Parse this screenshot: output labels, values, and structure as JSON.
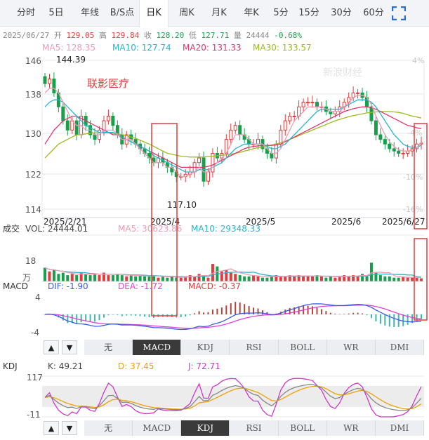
{
  "tabs": [
    {
      "label": "分时",
      "active": false
    },
    {
      "label": "5日",
      "active": false
    },
    {
      "label": "年线",
      "active": false
    },
    {
      "label": "B/S点",
      "active": false
    },
    {
      "label": "日K",
      "active": true
    },
    {
      "label": "周K",
      "active": false
    },
    {
      "label": "月K",
      "active": false
    },
    {
      "label": "年K",
      "active": false
    },
    {
      "label": "5分",
      "active": false
    },
    {
      "label": "15分",
      "active": false
    },
    {
      "label": "30分",
      "active": false
    },
    {
      "label": "60分",
      "active": false
    }
  ],
  "info": {
    "date": "2025/06/27",
    "open_label": "开",
    "open": "129.05",
    "high_label": "高",
    "high": "129.84",
    "close_label": "收",
    "close": "128.20",
    "low_label": "低",
    "low": "127.71",
    "vol_label": "量",
    "vol": "24444",
    "change": "-0.68%"
  },
  "ma": {
    "ma5": "MA5: 128.35",
    "ma10": "MA10: 127.74",
    "ma20": "MA20: 131.33",
    "ma30": "MA30: 133.57"
  },
  "stock_name": "联影医疗",
  "watermark": "新浪财经",
  "price_axis": {
    "labels": [
      "146",
      "138",
      "130",
      "122",
      "114"
    ],
    "right_labels": [
      "4%",
      "-4%",
      "-10%",
      "-16%"
    ],
    "ticks": [
      146,
      138,
      130,
      122,
      114
    ]
  },
  "annotations": {
    "high": "144.39",
    "low": "117.10"
  },
  "date_labels": [
    "2025/2/21",
    "2025/4",
    "2025/5",
    "2025/6",
    "2025/6/27"
  ],
  "volume": {
    "title": "成交",
    "vol": "VOL: 24444.01",
    "ma5": "MA5: 30623.86",
    "ma10": "MA10: 29348.33",
    "axis_top": "18",
    "axis_unit": "万"
  },
  "macd": {
    "title": "MACD",
    "dif": "DIF: -1.90",
    "dea": "DEA: -1.72",
    "macd": "MACD: -0.37",
    "axis_top": "4",
    "axis_bottom": "-4"
  },
  "kdj": {
    "title": "KDJ",
    "k": "K: 49.21",
    "d": "D: 37.45",
    "j": "J: 72.71",
    "axis_top": "117",
    "axis_bottom": "-11"
  },
  "indicator_buttons": [
    "无",
    "MACD",
    "KDJ",
    "RSI",
    "BOLL",
    "WR",
    "DMI"
  ],
  "macd_panel_active": "MACD",
  "kdj_panel_active": "KDJ",
  "arrows": {
    "up": "▲",
    "down": "▼"
  },
  "colors": {
    "up": "#e23b3b",
    "down": "#17a04c",
    "ma5": "#f09ab4",
    "ma10": "#27b4d0",
    "ma20": "#e0356b",
    "ma30": "#9bbb1e",
    "highlight": "#e23b3b",
    "dif": "#3a5be6",
    "dea": "#e43fd8",
    "kdj_k": "#888888",
    "kdj_d": "#f2a000",
    "kdj_j": "#d236c9"
  },
  "chart_data": {
    "type": "candlestick",
    "x": [
      "2025/2/21",
      "2025/4",
      "2025/5",
      "2025/6",
      "2025/6/27"
    ],
    "ylim": [
      114,
      146
    ],
    "visible_high": 144.39,
    "visible_low": 117.1,
    "last_bar": {
      "open": 129.05,
      "high": 129.84,
      "low": 127.71,
      "close": 128.2,
      "volume": 24444
    },
    "closes": [
      141,
      142,
      139,
      136,
      133,
      131,
      133,
      130,
      134,
      132,
      130,
      129,
      131,
      133,
      134,
      132,
      130,
      128,
      130,
      129,
      128,
      127,
      126,
      125,
      124,
      125,
      124,
      123,
      122,
      121,
      121,
      121.5,
      122,
      124,
      125,
      120,
      122,
      126,
      125,
      126,
      129,
      131,
      132,
      130,
      129,
      128,
      128,
      129,
      127,
      126,
      125,
      128,
      131,
      133,
      134,
      134,
      136,
      137,
      137,
      137,
      136,
      136,
      135,
      134.5,
      135,
      136,
      137,
      138,
      139,
      139,
      138,
      136,
      133,
      130,
      129,
      128,
      127,
      126.5,
      126,
      126,
      126.5,
      127,
      128,
      128.2
    ],
    "ma5": [
      139,
      140,
      140,
      139,
      137,
      135,
      133,
      132,
      132,
      131,
      131,
      130,
      130,
      131,
      131,
      131,
      130,
      129,
      129,
      129,
      128,
      127,
      126,
      125,
      124,
      124,
      124,
      123,
      123,
      122,
      121,
      121,
      121.5,
      122,
      123,
      122,
      122,
      123,
      124,
      125,
      126,
      128,
      130,
      130,
      130,
      129,
      128,
      128,
      128,
      127,
      126,
      126,
      127,
      129,
      131,
      133,
      134,
      135,
      136,
      136,
      136,
      136,
      135.5,
      135,
      135,
      135,
      136,
      137,
      138,
      138.5,
      138.5,
      138,
      136.5,
      134,
      132,
      130,
      128.5,
      127.5,
      126.8,
      126.5,
      126.5,
      126.8,
      127.2,
      128.35
    ],
    "ma10": [
      136,
      137,
      137.5,
      137.5,
      137,
      136,
      135,
      134,
      133,
      132,
      131.5,
      131,
      130.5,
      130.5,
      130.5,
      130.5,
      130,
      129.5,
      129,
      128.5,
      128,
      127.5,
      127,
      126.5,
      125.5,
      125,
      124.5,
      124,
      123.5,
      123,
      122.5,
      122,
      122,
      122,
      122.5,
      122.5,
      122.5,
      123,
      123.5,
      124,
      125,
      126,
      127,
      127.5,
      128,
      128,
      128,
      128,
      128,
      127.5,
      127,
      127,
      127.5,
      128,
      129,
      130,
      131,
      132,
      133,
      134,
      135,
      135.5,
      135.5,
      135.5,
      135.5,
      135.5,
      136,
      136.5,
      137,
      137.5,
      137.5,
      137.5,
      137,
      136,
      134.5,
      133,
      131.5,
      130,
      129,
      128,
      127.5,
      127.3,
      127.3,
      127.74
    ],
    "ma20": [
      128,
      129.5,
      131,
      132,
      133,
      133.5,
      134,
      134,
      133.5,
      133,
      132.5,
      132,
      131.5,
      131,
      130.5,
      130,
      130,
      129.5,
      129,
      128.5,
      128,
      127.5,
      127,
      126.5,
      126,
      125.5,
      125,
      124.5,
      124,
      123.5,
      123,
      123,
      123,
      123,
      123,
      123,
      123.2,
      123.5,
      124,
      124.5,
      125,
      125.5,
      126,
      126.5,
      127,
      127.3,
      127.5,
      127.6,
      127.7,
      127.7,
      127.7,
      127.8,
      128,
      128.5,
      129,
      129.5,
      130,
      130.5,
      131,
      131.5,
      132,
      132.5,
      133,
      133.5,
      134,
      134.5,
      135,
      135.3,
      135.6,
      135.8,
      136,
      136,
      135.8,
      135.5,
      135,
      134.5,
      134,
      133.5,
      133,
      132.5,
      132,
      131.8,
      131.5,
      131.33
    ],
    "ma30": [
      125,
      126,
      127,
      128,
      128.5,
      129,
      129.5,
      130,
      130,
      130.2,
      130.3,
      130.4,
      130.4,
      130.4,
      130.4,
      130.3,
      130.2,
      130,
      129.8,
      129.5,
      129.2,
      128.8,
      128.4,
      128,
      127.5,
      127,
      126.5,
      126,
      125.8,
      125.6,
      125.4,
      125.3,
      125.2,
      125.2,
      125.2,
      125.2,
      125.3,
      125.4,
      125.5,
      125.6,
      125.7,
      125.8,
      126,
      126.2,
      126.5,
      126.7,
      127,
      127.2,
      127.4,
      127.6,
      127.8,
      128,
      128.3,
      128.6,
      129,
      129.4,
      129.8,
      130.2,
      130.6,
      131,
      131.4,
      131.8,
      132.2,
      132.6,
      133,
      133.3,
      133.6,
      133.9,
      134.1,
      134.3,
      134.5,
      134.7,
      134.8,
      134.9,
      135,
      135,
      135,
      134.9,
      134.8,
      134.6,
      134.3,
      134,
      133.8,
      133.57
    ],
    "volume_series": [
      11,
      8,
      9,
      6,
      7,
      5,
      6,
      5,
      7,
      6,
      5,
      6,
      5,
      7,
      5,
      5,
      6,
      5,
      4,
      5,
      4,
      5,
      4,
      4,
      5,
      3,
      4,
      3,
      4,
      3,
      3,
      4,
      5,
      4,
      6,
      5,
      3,
      14,
      12,
      8,
      9,
      7,
      6,
      5,
      4,
      4,
      5,
      4,
      3,
      3,
      4,
      5,
      4,
      4,
      5,
      4,
      5,
      4,
      4,
      4,
      5,
      4,
      3,
      4,
      3,
      4,
      5,
      4,
      5,
      4,
      6,
      4,
      15,
      7,
      5,
      4,
      4,
      3,
      3,
      4,
      3,
      3,
      3,
      2.4
    ],
    "macd_range": [
      -4,
      4
    ],
    "kdj_range": [
      -11,
      117
    ]
  }
}
